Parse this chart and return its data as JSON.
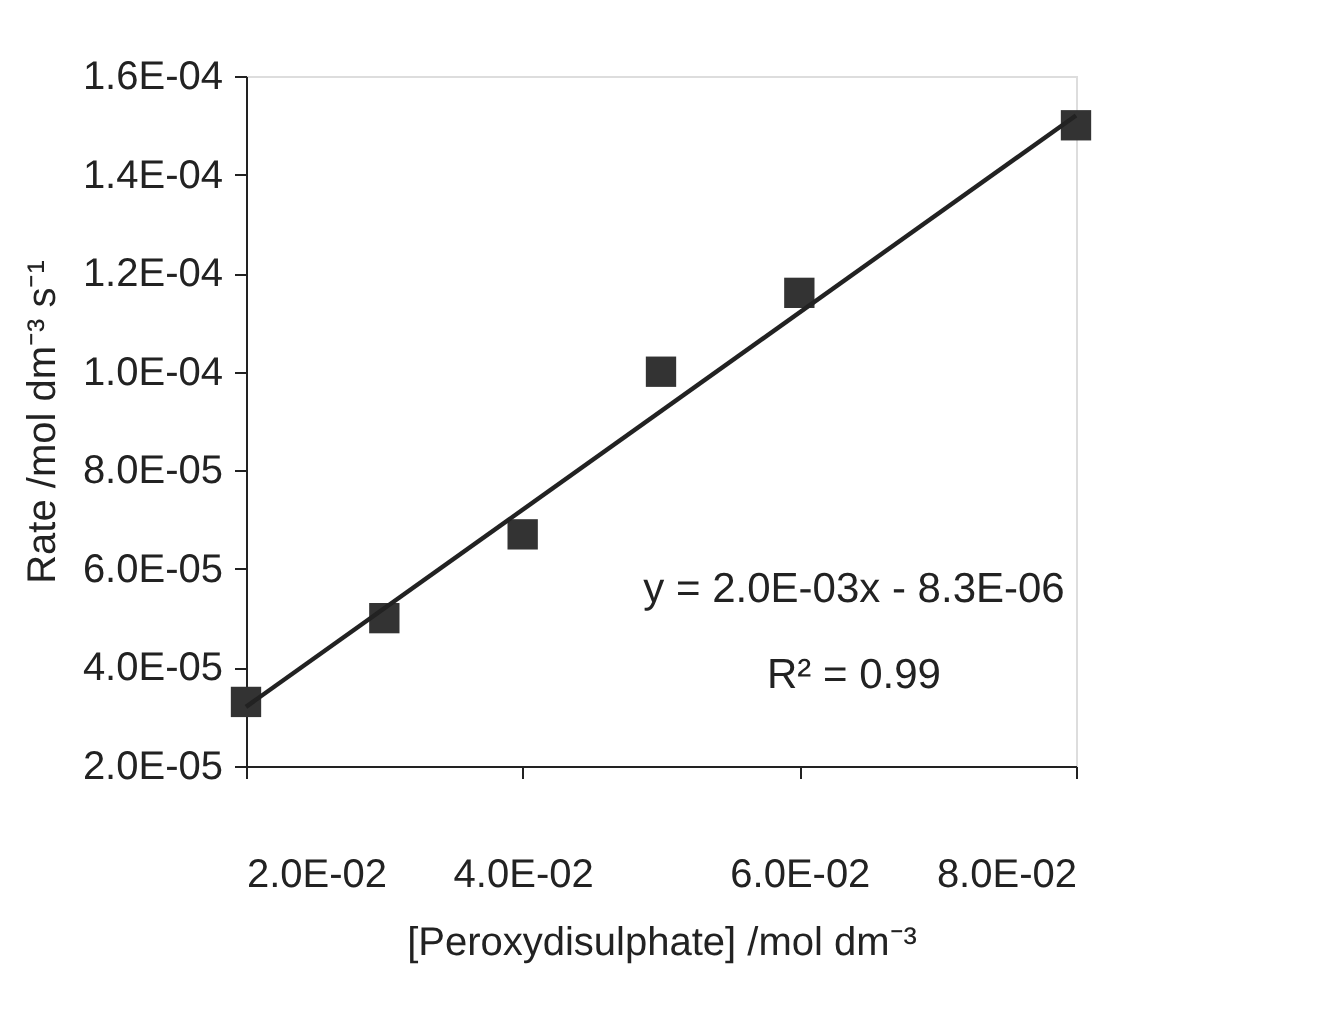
{
  "chart_data": {
    "type": "scatter",
    "xlabel": "[Peroxydisulphate] /mol dm⁻³",
    "ylabel": "Rate /mol dm⁻³ s⁻¹",
    "annotations": [
      "y = 2.0E-03x - 8.3E-06",
      "R² = 0.99"
    ],
    "xlim": [
      0.02,
      0.08
    ],
    "xticks": [
      {
        "value": 0.02,
        "label": "2.0E-02"
      },
      {
        "value": 0.04,
        "label": "4.0E-02"
      },
      {
        "value": 0.06,
        "label": "6.0E-02"
      },
      {
        "value": 0.08,
        "label": "8.0E-02"
      }
    ],
    "ylim": [
      2e-05,
      0.00016
    ],
    "yticks": [
      {
        "value": 2e-05,
        "label": "2.0E-05"
      },
      {
        "value": 4e-05,
        "label": "4.0E-05"
      },
      {
        "value": 6e-05,
        "label": "6.0E-05"
      },
      {
        "value": 8e-05,
        "label": "8.0E-05"
      },
      {
        "value": 0.0001,
        "label": "1.0E-04"
      },
      {
        "value": 0.00012,
        "label": "1.2E-04"
      },
      {
        "value": 0.00014,
        "label": "1.4E-04"
      },
      {
        "value": 0.00016,
        "label": "1.6E-04"
      }
    ],
    "grid": false,
    "series": [
      {
        "color": "#333333",
        "marker": "square",
        "x": [
          0.02,
          0.03,
          0.04,
          0.05,
          0.06,
          0.08
        ],
        "values": [
          3.3e-05,
          5e-05,
          6.7e-05,
          0.0001,
          0.000116,
          0.00015
        ]
      },
      {
        "type": "line",
        "color": "#222222",
        "line_style": "solid",
        "marker": "none",
        "x": [
          0.02,
          0.08
        ],
        "values": [
          3.2e-05,
          0.000152
        ]
      }
    ]
  }
}
